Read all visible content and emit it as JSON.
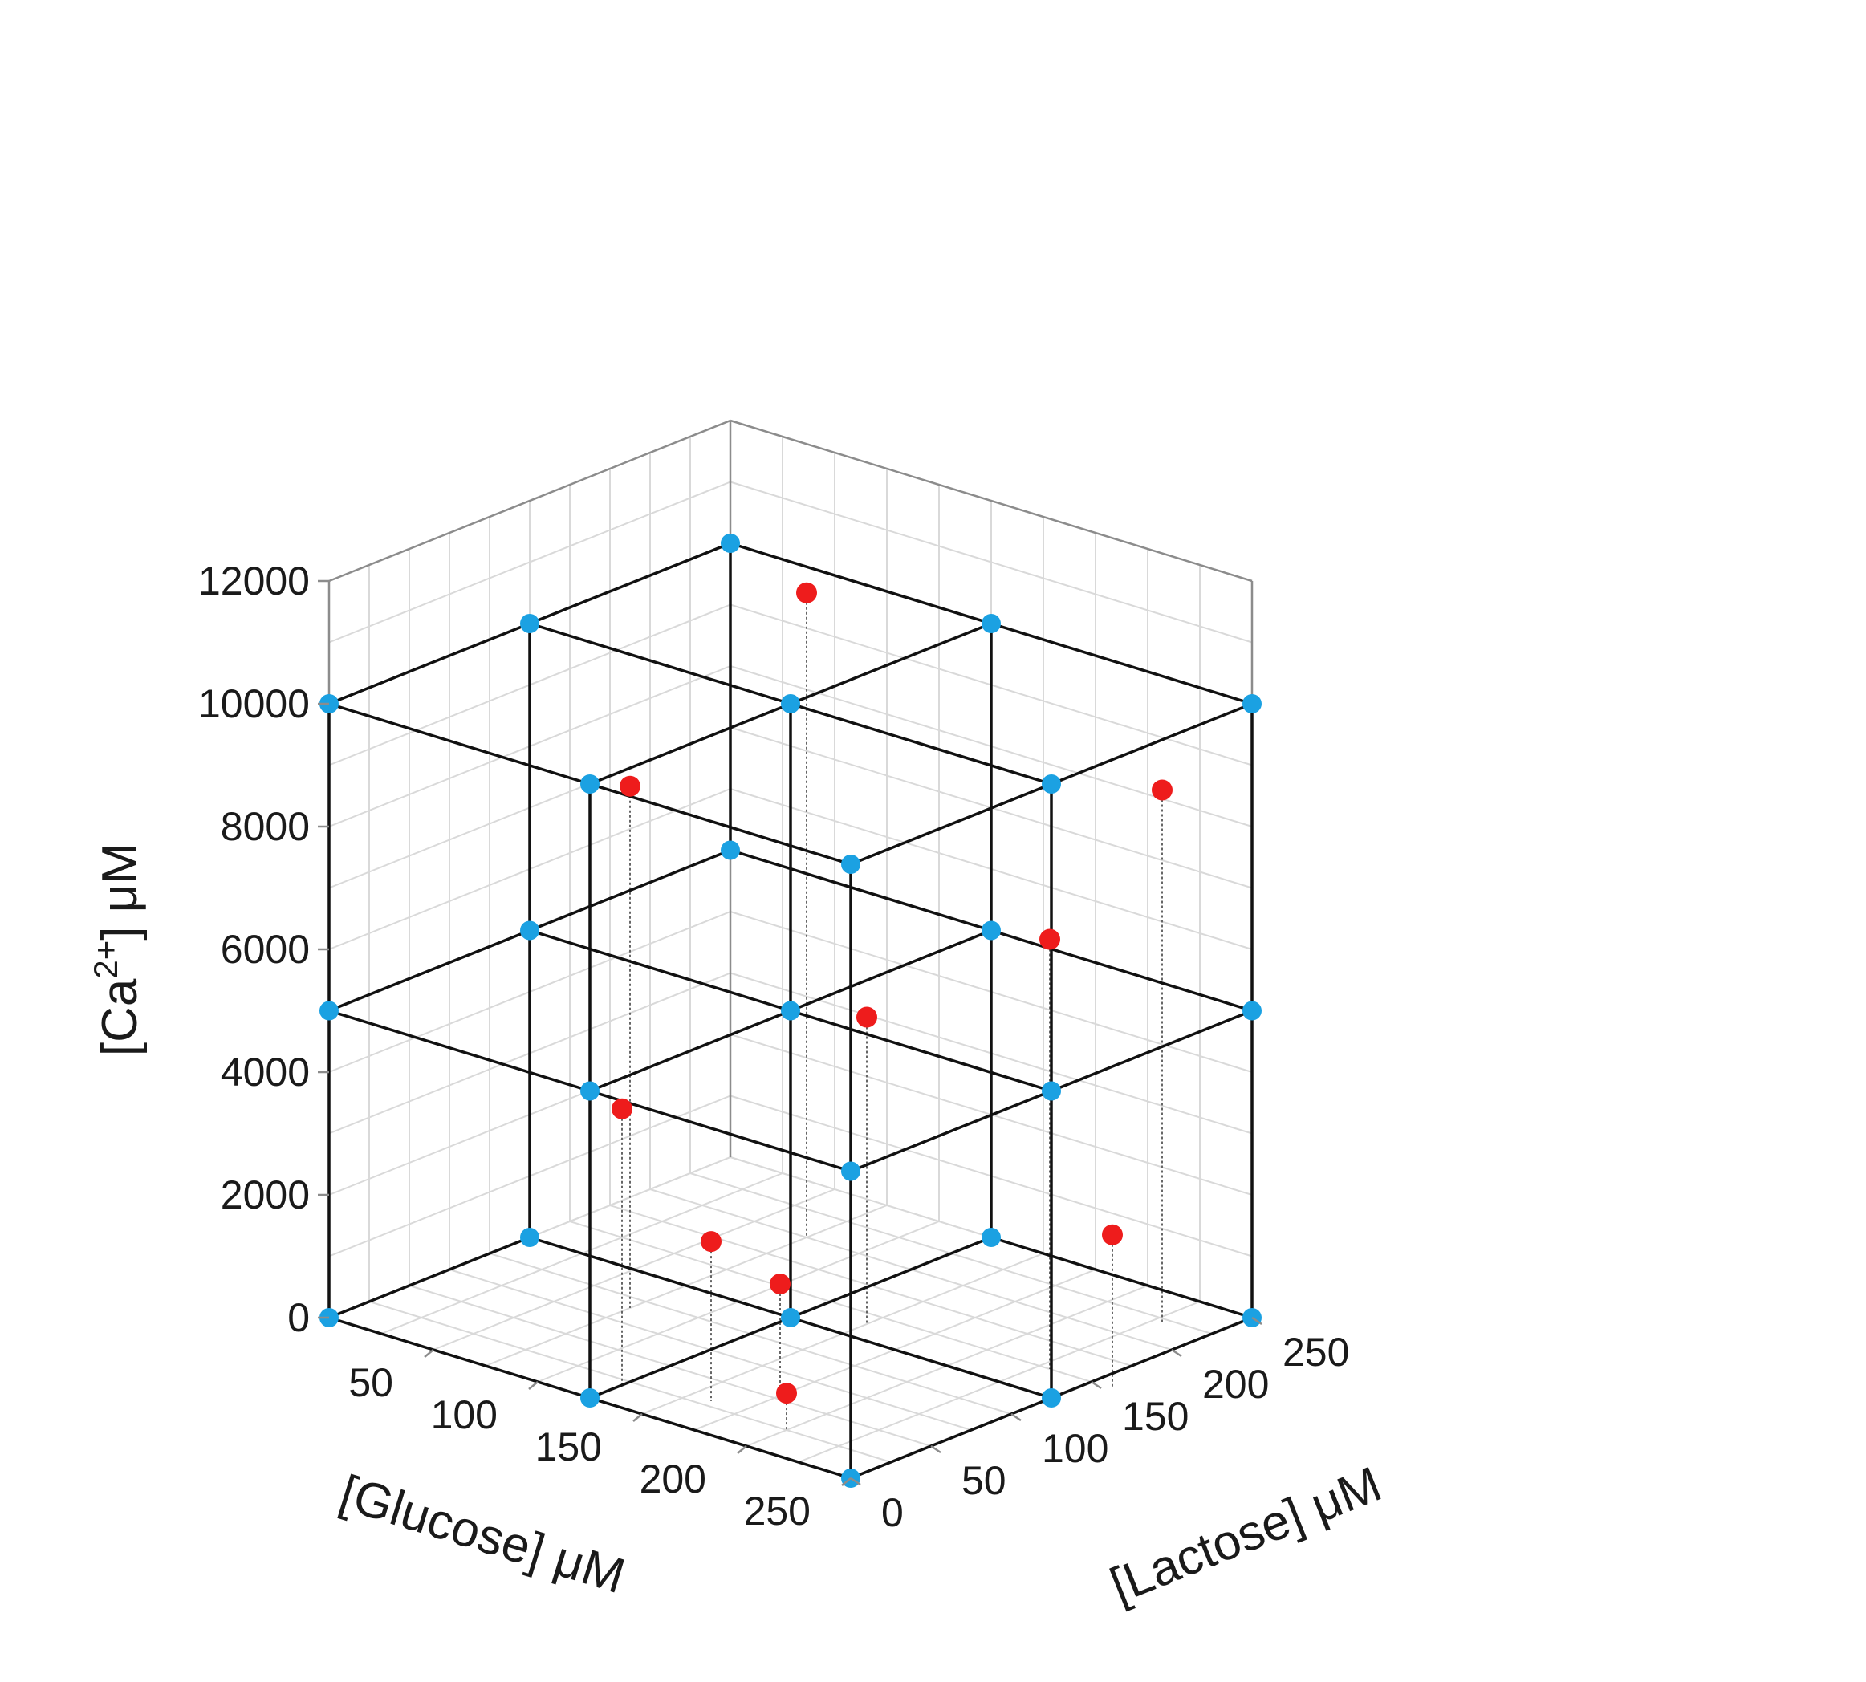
{
  "chart_data": {
    "type": "scatter3d",
    "title": "",
    "axes": {
      "x": {
        "label": "[Glucose] μM",
        "ticks": [
          50,
          100,
          150,
          200,
          250
        ],
        "range": [
          0,
          250
        ]
      },
      "y": {
        "label": "[Lactose] μM",
        "ticks": [
          0,
          50,
          100,
          150,
          200,
          250
        ],
        "range": [
          0,
          250
        ]
      },
      "z": {
        "label_prefix": "[Ca",
        "label_sup": "2+",
        "label_suffix": "] μM",
        "ticks": [
          0,
          2000,
          4000,
          6000,
          8000,
          10000,
          12000
        ],
        "range": [
          0,
          12000
        ]
      }
    },
    "grid": true,
    "series": [
      {
        "marker": "design-points",
        "color": "#1ba1e2",
        "connected_as_lattice": true,
        "levels": {
          "glucose": [
            0,
            125,
            250
          ],
          "lactose": [
            0,
            125,
            250
          ],
          "ca": [
            0,
            5000,
            10000
          ]
        },
        "omitted_points": [
          {
            "glucose": 0,
            "lactose": 250,
            "ca": 0
          }
        ]
      },
      {
        "marker": "measured-points",
        "color": "#ee1c1c",
        "drop_lines": true,
        "points": [
          {
            "glucose": 75,
            "lactose": 200,
            "ca": 10500
          },
          {
            "glucose": 75,
            "lactose": 90,
            "ca": 8500
          },
          {
            "glucose": 230,
            "lactose": 220,
            "ca": 8700
          },
          {
            "glucose": 230,
            "lactose": 150,
            "ca": 7000
          },
          {
            "glucose": 150,
            "lactose": 140,
            "ca": 5000
          },
          {
            "glucose": 125,
            "lactose": 20,
            "ca": 4500
          },
          {
            "glucose": 160,
            "lactose": 30,
            "ca": 2600
          },
          {
            "glucose": 260,
            "lactose": 150,
            "ca": 2500
          },
          {
            "glucose": 170,
            "lactose": 60,
            "ca": 1700
          },
          {
            "glucose": 200,
            "lactose": 25,
            "ca": 600
          }
        ]
      }
    ]
  },
  "colors": {
    "lattice_line": "#111111",
    "grid": "#d9d9d9",
    "box": "#8c8c8c",
    "drop_line": "#666666"
  }
}
